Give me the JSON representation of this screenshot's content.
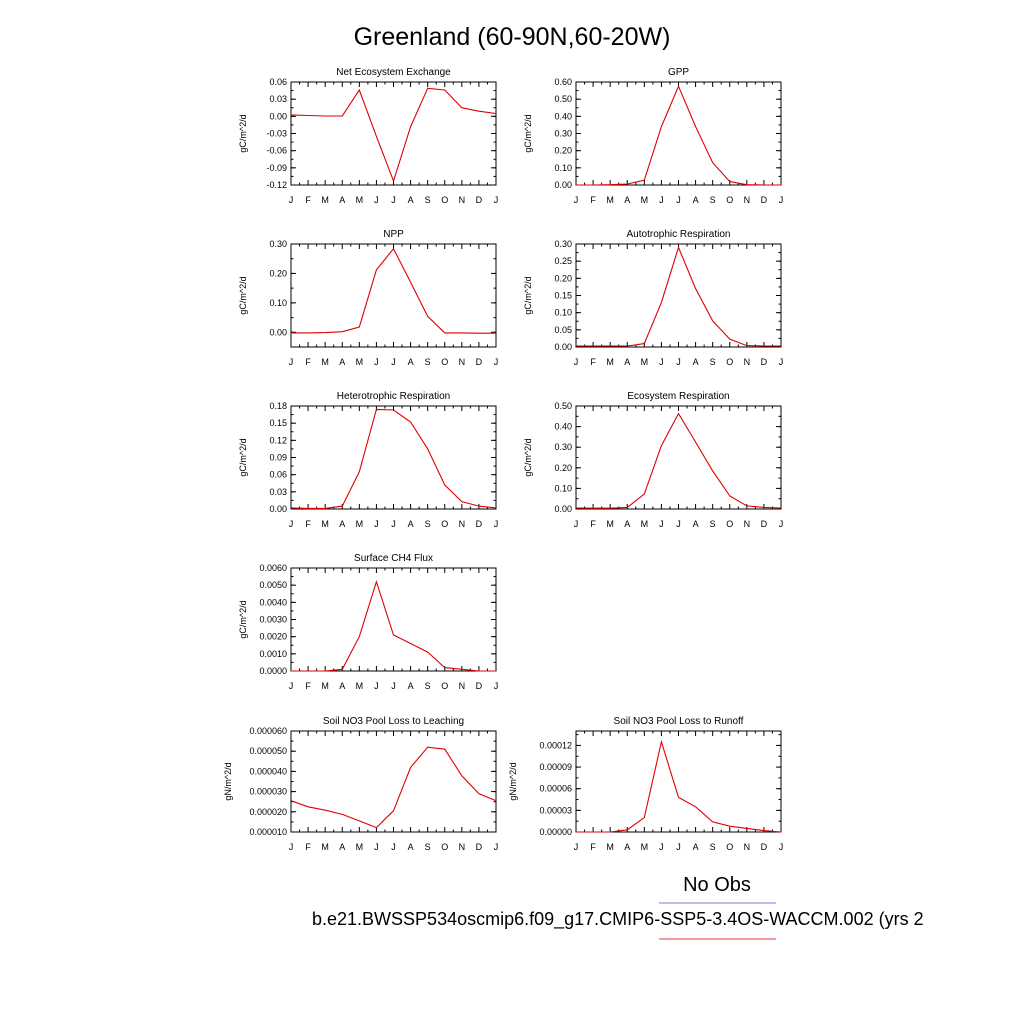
{
  "title": "Greenland (60-90N,60-20W)",
  "legend": {
    "obs_label": "No Obs",
    "obs_color": "#7b7bdc",
    "model_color": "#e8333b"
  },
  "footer": "b.e21.BWSSP534oscmip6.f09_g17.CMIP6-SSP5-3.4OS-WACCM.002 (yrs 2",
  "line_color": "#e00000",
  "chart_data": [
    {
      "type": "line",
      "title": "Net Ecosystem Exchange",
      "ylabel": "gC/m^2/d",
      "categories": [
        "J",
        "F",
        "M",
        "A",
        "M",
        "J",
        "J",
        "A",
        "S",
        "O",
        "N",
        "D",
        "J"
      ],
      "ylim": [
        -0.12,
        0.06
      ],
      "yticks": [
        "0.06",
        "0.03",
        "0.00",
        "-0.03",
        "-0.06",
        "-0.09",
        "-0.12"
      ],
      "ytick_values": [
        0.06,
        0.03,
        0.0,
        -0.03,
        -0.06,
        -0.09,
        -0.12
      ],
      "values": [
        0.0025,
        0.0015,
        0.0005,
        0.0008,
        0.046,
        -0.035,
        -0.113,
        -0.018,
        0.049,
        0.046,
        0.015,
        0.009,
        0.005
      ]
    },
    {
      "type": "line",
      "title": "GPP",
      "ylabel": "gC/m^2/d",
      "categories": [
        "J",
        "F",
        "M",
        "A",
        "M",
        "J",
        "J",
        "A",
        "S",
        "O",
        "N",
        "D",
        "J"
      ],
      "ylim": [
        0.0,
        0.6
      ],
      "yticks": [
        "0.60",
        "0.50",
        "0.40",
        "0.30",
        "0.20",
        "0.10",
        "0.00"
      ],
      "ytick_values": [
        0.6,
        0.5,
        0.4,
        0.3,
        0.2,
        0.1,
        0.0
      ],
      "values": [
        0.0,
        0.0,
        0.002,
        0.006,
        0.028,
        0.34,
        0.575,
        0.34,
        0.13,
        0.02,
        0.002,
        0.0,
        0.0
      ]
    },
    {
      "type": "line",
      "title": "NPP",
      "ylabel": "gC/m^2/d",
      "categories": [
        "J",
        "F",
        "M",
        "A",
        "M",
        "J",
        "J",
        "A",
        "S",
        "O",
        "N",
        "D",
        "J"
      ],
      "ylim": [
        -0.05,
        0.3
      ],
      "yticks": [
        "0.30",
        "0.20",
        "0.10",
        "0.00"
      ],
      "ytick_values": [
        0.3,
        0.2,
        0.1,
        0.0
      ],
      "values": [
        -0.002,
        -0.002,
        -0.001,
        0.002,
        0.018,
        0.212,
        0.284,
        0.17,
        0.054,
        -0.002,
        -0.002,
        -0.003,
        -0.003
      ]
    },
    {
      "type": "line",
      "title": "Autotrophic Respiration",
      "ylabel": "gC/m^2/d",
      "categories": [
        "J",
        "F",
        "M",
        "A",
        "M",
        "J",
        "J",
        "A",
        "S",
        "O",
        "N",
        "D",
        "J"
      ],
      "ylim": [
        0.0,
        0.3
      ],
      "yticks": [
        "0.30",
        "0.25",
        "0.20",
        "0.15",
        "0.10",
        "0.05",
        "0.00"
      ],
      "ytick_values": [
        0.3,
        0.25,
        0.2,
        0.15,
        0.1,
        0.05,
        0.0
      ],
      "values": [
        0.003,
        0.003,
        0.003,
        0.003,
        0.01,
        0.13,
        0.29,
        0.17,
        0.076,
        0.023,
        0.004,
        0.003,
        0.003
      ]
    },
    {
      "type": "line",
      "title": "Heterotrophic Respiration",
      "ylabel": "gC/m^2/d",
      "categories": [
        "J",
        "F",
        "M",
        "A",
        "M",
        "J",
        "J",
        "A",
        "S",
        "O",
        "N",
        "D",
        "J"
      ],
      "ylim": [
        0.0,
        0.18
      ],
      "yticks": [
        "0.18",
        "0.15",
        "0.12",
        "0.09",
        "0.06",
        "0.03",
        "0.00"
      ],
      "ytick_values": [
        0.18,
        0.15,
        0.12,
        0.09,
        0.06,
        0.03,
        0.0
      ],
      "values": [
        0.002,
        0.001,
        0.001,
        0.005,
        0.065,
        0.174,
        0.173,
        0.152,
        0.105,
        0.042,
        0.013,
        0.005,
        0.002
      ]
    },
    {
      "type": "line",
      "title": "Ecosystem Respiration",
      "ylabel": "gC/m^2/d",
      "categories": [
        "J",
        "F",
        "M",
        "A",
        "M",
        "J",
        "J",
        "A",
        "S",
        "O",
        "N",
        "D",
        "J"
      ],
      "ylim": [
        0.0,
        0.5
      ],
      "yticks": [
        "0.50",
        "0.40",
        "0.30",
        "0.20",
        "0.10",
        "0.00"
      ],
      "ytick_values": [
        0.5,
        0.4,
        0.3,
        0.2,
        0.1,
        0.0
      ],
      "values": [
        0.005,
        0.004,
        0.004,
        0.008,
        0.073,
        0.308,
        0.463,
        0.325,
        0.185,
        0.063,
        0.015,
        0.008,
        0.005
      ]
    },
    {
      "type": "line",
      "title": "Surface CH4 Flux",
      "ylabel": "gC/m^2/d",
      "categories": [
        "J",
        "F",
        "M",
        "A",
        "M",
        "J",
        "J",
        "A",
        "S",
        "O",
        "N",
        "D",
        "J"
      ],
      "ylim": [
        0.0,
        0.006
      ],
      "yticks": [
        "0.0060",
        "0.0050",
        "0.0040",
        "0.0030",
        "0.0020",
        "0.0010",
        "0.0000"
      ],
      "ytick_values": [
        0.006,
        0.005,
        0.004,
        0.003,
        0.002,
        0.001,
        0.0
      ],
      "values": [
        0.0,
        0.0,
        0.0,
        0.0001,
        0.002,
        0.0052,
        0.0021,
        0.0016,
        0.0011,
        0.0002,
        0.0001,
        0.0,
        0.0
      ]
    },
    {
      "type": "line",
      "title": "Soil NO3 Pool Loss to Leaching",
      "ylabel": "gN/m^2/d",
      "categories": [
        "J",
        "F",
        "M",
        "A",
        "M",
        "J",
        "J",
        "A",
        "S",
        "O",
        "N",
        "D",
        "J"
      ],
      "ylim": [
        1e-05,
        6e-05
      ],
      "yticks": [
        "0.000060",
        "0.000050",
        "0.000040",
        "0.000030",
        "0.000020",
        "0.000010"
      ],
      "ytick_values": [
        6e-05,
        5e-05,
        4e-05,
        3e-05,
        2e-05,
        1e-05
      ],
      "values": [
        2.55e-05,
        2.25e-05,
        2.08e-05,
        1.87e-05,
        1.55e-05,
        1.22e-05,
        2.05e-05,
        4.2e-05,
        5.2e-05,
        5.1e-05,
        3.78e-05,
        2.9e-05,
        2.55e-05
      ]
    },
    {
      "type": "line",
      "title": "Soil NO3 Pool Loss to Runoff",
      "ylabel": "gN/m^2/d",
      "categories": [
        "J",
        "F",
        "M",
        "A",
        "M",
        "J",
        "J",
        "A",
        "S",
        "O",
        "N",
        "D",
        "J"
      ],
      "ylim": [
        0.0,
        0.00014
      ],
      "yticks": [
        "0.00012",
        "0.00009",
        "0.00006",
        "0.00003",
        "0.00000"
      ],
      "ytick_values": [
        0.00012,
        9e-05,
        6e-05,
        3e-05,
        0.0
      ],
      "values": [
        0.0,
        0.0,
        0.0,
        3e-06,
        2e-05,
        0.000125,
        4.8e-05,
        3.5e-05,
        1.4e-05,
        8e-06,
        5e-06,
        2e-06,
        0.0
      ]
    }
  ]
}
